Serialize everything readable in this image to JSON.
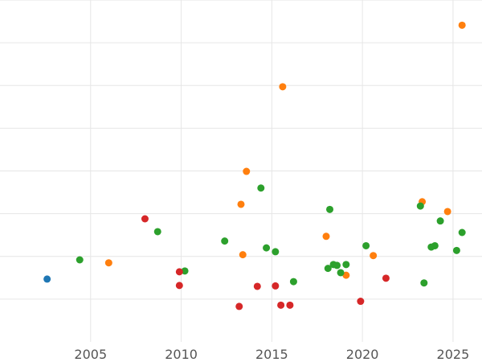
{
  "chart_data": {
    "type": "scatter",
    "title": "",
    "xlabel": "",
    "ylabel": "",
    "grid": true,
    "legend": "none",
    "xlim": [
      2000,
      2026.6
    ],
    "ylim": [
      0,
      8
    ],
    "xticks": [
      2005,
      2010,
      2015,
      2020,
      2025
    ],
    "x_tick_labels": [
      "2005",
      "2010",
      "2015",
      "2020",
      "2025"
    ],
    "yticks": [
      1,
      2,
      3,
      4,
      5,
      6,
      7,
      8
    ],
    "series": [
      {
        "color": "#1f77b4",
        "points": [
          {
            "x": 2002.6,
            "y": 1.47
          }
        ]
      },
      {
        "color": "#ff7f0e",
        "points": [
          {
            "x": 2006.0,
            "y": 1.85
          },
          {
            "x": 2013.3,
            "y": 3.22
          },
          {
            "x": 2013.4,
            "y": 2.04
          },
          {
            "x": 2013.6,
            "y": 3.99
          },
          {
            "x": 2015.6,
            "y": 5.97
          },
          {
            "x": 2018.0,
            "y": 2.47
          },
          {
            "x": 2019.1,
            "y": 1.56
          },
          {
            "x": 2020.6,
            "y": 2.02
          },
          {
            "x": 2023.3,
            "y": 3.28
          },
          {
            "x": 2024.7,
            "y": 3.05
          },
          {
            "x": 2025.5,
            "y": 7.41
          }
        ]
      },
      {
        "color": "#2ca02c",
        "points": [
          {
            "x": 2004.4,
            "y": 1.92
          },
          {
            "x": 2008.7,
            "y": 2.58
          },
          {
            "x": 2010.2,
            "y": 1.66
          },
          {
            "x": 2012.4,
            "y": 2.36
          },
          {
            "x": 2014.4,
            "y": 3.6
          },
          {
            "x": 2014.7,
            "y": 2.2
          },
          {
            "x": 2015.2,
            "y": 2.11
          },
          {
            "x": 2016.2,
            "y": 1.41
          },
          {
            "x": 2018.1,
            "y": 1.72
          },
          {
            "x": 2018.2,
            "y": 3.1
          },
          {
            "x": 2018.4,
            "y": 1.81
          },
          {
            "x": 2018.6,
            "y": 1.79
          },
          {
            "x": 2018.8,
            "y": 1.62
          },
          {
            "x": 2019.1,
            "y": 1.81
          },
          {
            "x": 2020.2,
            "y": 2.25
          },
          {
            "x": 2023.2,
            "y": 3.18
          },
          {
            "x": 2023.4,
            "y": 1.38
          },
          {
            "x": 2023.8,
            "y": 2.22
          },
          {
            "x": 2024.0,
            "y": 2.25
          },
          {
            "x": 2024.3,
            "y": 2.83
          },
          {
            "x": 2025.2,
            "y": 2.14
          },
          {
            "x": 2025.5,
            "y": 2.56
          }
        ]
      },
      {
        "color": "#d62728",
        "points": [
          {
            "x": 2008.0,
            "y": 2.88
          },
          {
            "x": 2009.9,
            "y": 1.64
          },
          {
            "x": 2009.9,
            "y": 1.32
          },
          {
            "x": 2013.2,
            "y": 0.83
          },
          {
            "x": 2014.2,
            "y": 1.3
          },
          {
            "x": 2015.2,
            "y": 1.31
          },
          {
            "x": 2015.5,
            "y": 0.86
          },
          {
            "x": 2016.0,
            "y": 0.86
          },
          {
            "x": 2019.9,
            "y": 0.95
          },
          {
            "x": 2021.3,
            "y": 1.49
          }
        ]
      }
    ]
  }
}
